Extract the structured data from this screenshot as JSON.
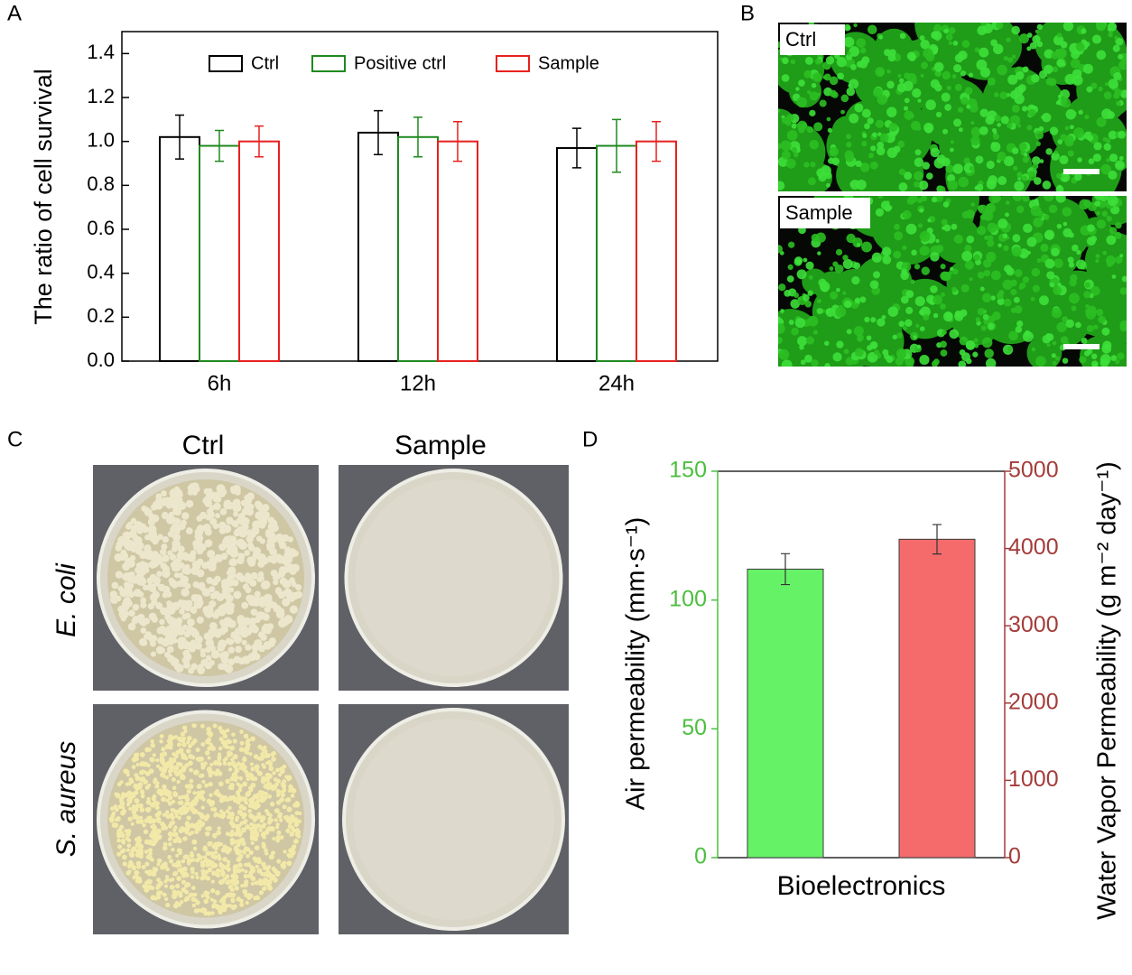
{
  "panel_labels": [
    "A",
    "B",
    "C",
    "D"
  ],
  "micrographs": [
    "Ctrl",
    "Sample"
  ],
  "plates": {
    "columns": [
      "Ctrl",
      "Sample"
    ],
    "rows": [
      "E. coli",
      "S. aureus"
    ]
  },
  "chart_data": [
    {
      "type": "bar",
      "ylabel": "The ratio of cell survival",
      "categories": [
        "6h",
        "12h",
        "24h"
      ],
      "series": [
        {
          "name": "Ctrl",
          "color": "#000000",
          "values": [
            1.02,
            1.04,
            0.97
          ],
          "errors": [
            0.1,
            0.1,
            0.09
          ]
        },
        {
          "name": "Positive ctrl",
          "color": "#1f8a1f",
          "values": [
            0.98,
            1.02,
            0.98
          ],
          "errors": [
            0.07,
            0.09,
            0.12
          ]
        },
        {
          "name": "Sample",
          "color": "#e8201e",
          "values": [
            1.0,
            1.0,
            1.0
          ],
          "errors": [
            0.07,
            0.09,
            0.09
          ]
        }
      ],
      "ylim": [
        0,
        1.5
      ],
      "yticks": [
        {
          "value": 0,
          "label": "0.0"
        },
        0.2,
        0.4,
        0.6,
        0.8,
        {
          "value": 1,
          "label": "1.0"
        },
        1.2,
        1.4
      ],
      "legend": "top"
    },
    {
      "type": "bar",
      "xlabel": "Bioelectronics",
      "ylabel": "Air permeability (mm·s⁻¹)",
      "ylabel_color": "#4cbf3f",
      "y2label": "Water Vapor Permeability (g m⁻² day⁻¹)",
      "y2label_color": "#a33c3a",
      "categories": [
        null
      ],
      "series": [
        {
          "color": "#66f266",
          "values": [
            112
          ],
          "errors": [
            6
          ]
        },
        {
          "color": "#f56b6b",
          "values": [
            4120
          ],
          "errors": [
            190
          ],
          "axis": "y2"
        }
      ],
      "ylim": [
        0,
        150
      ],
      "yticks": [
        0,
        50,
        100,
        150
      ],
      "y2lim": [
        0,
        5000
      ],
      "y2ticks": [
        0,
        1000,
        2000,
        3000,
        4000,
        5000
      ]
    }
  ]
}
